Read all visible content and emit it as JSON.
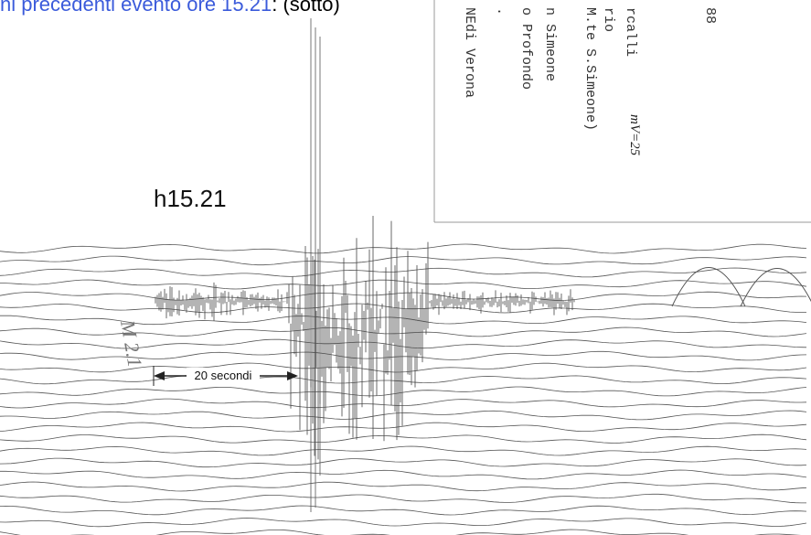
{
  "caption": {
    "link": "ni precedenti evento ore 15.21",
    "rest": ": (sotto)"
  },
  "card": {
    "lines": [
      "88",
      "rcalli",
      "rio",
      "M.te S.Simeone)",
      "n Simeone",
      "o Profondo",
      ".",
      "NEdi Verona"
    ],
    "handwritten": "mV=25"
  },
  "seismogram": {
    "time_label": "h15.21",
    "scale_label": "20 secondi",
    "magnitude_note": "M 2.1"
  }
}
